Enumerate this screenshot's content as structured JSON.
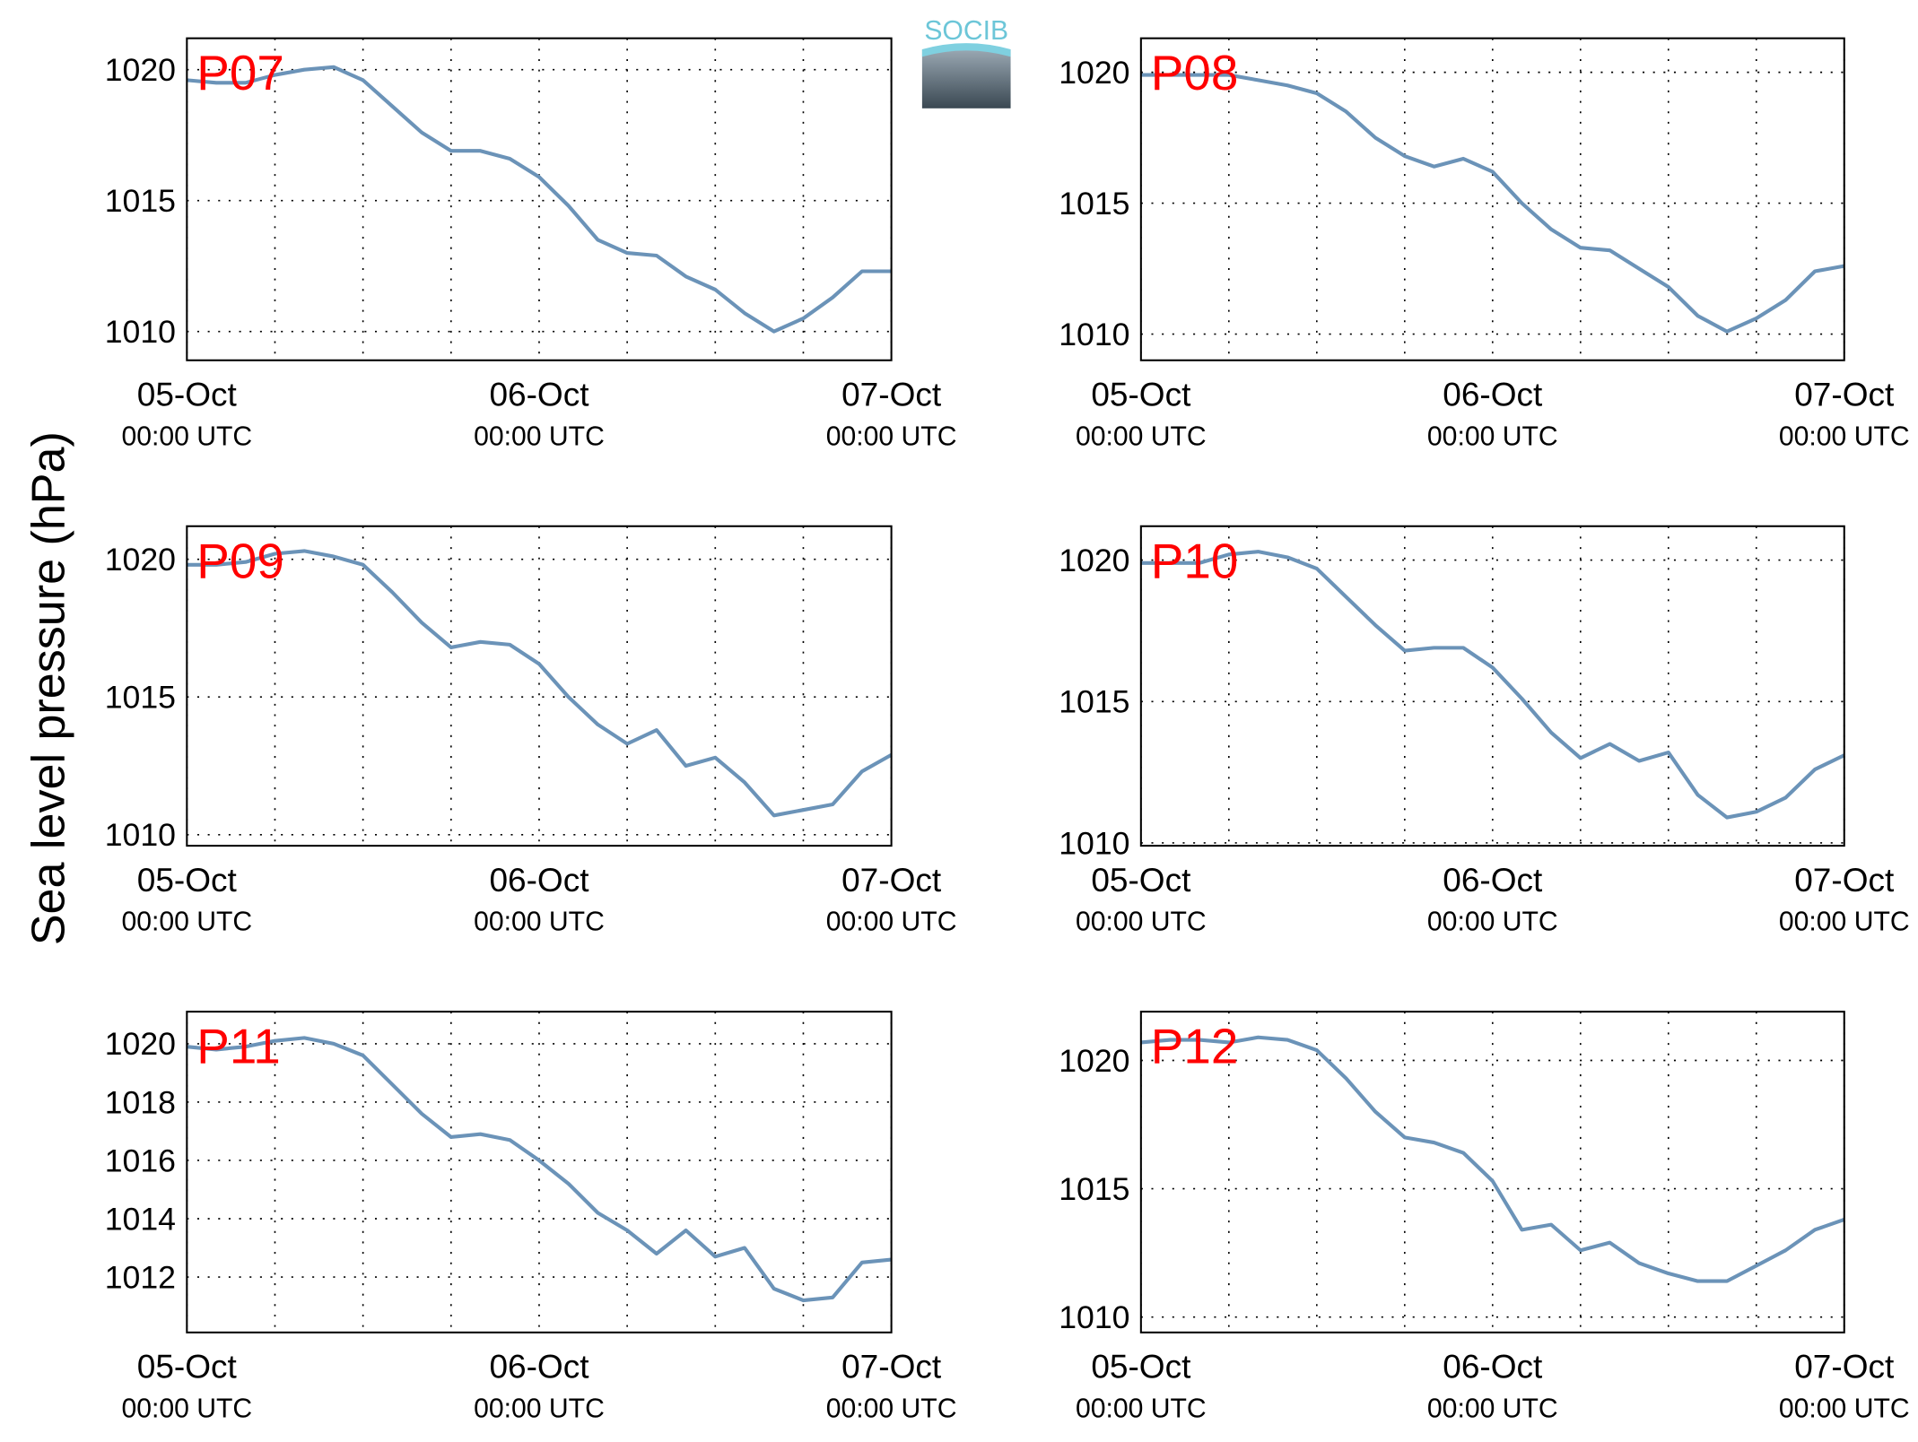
{
  "ylabel": "Sea level pressure (hPa)",
  "logo": "SOCIB",
  "chart_data": [
    {
      "type": "line",
      "title": "P07",
      "grid": true,
      "x": [
        "05-Oct 00:00",
        "05-Oct 02:00",
        "05-Oct 04:00",
        "05-Oct 06:00",
        "05-Oct 08:00",
        "05-Oct 10:00",
        "05-Oct 12:00",
        "05-Oct 14:00",
        "05-Oct 16:00",
        "05-Oct 18:00",
        "05-Oct 20:00",
        "05-Oct 22:00",
        "06-Oct 00:00",
        "06-Oct 02:00",
        "06-Oct 04:00",
        "06-Oct 06:00",
        "06-Oct 08:00",
        "06-Oct 10:00",
        "06-Oct 12:00",
        "06-Oct 14:00",
        "06-Oct 16:00",
        "06-Oct 18:00",
        "06-Oct 20:00",
        "06-Oct 22:00",
        "07-Oct 00:00"
      ],
      "series": [
        {
          "color": "#6b93b8",
          "values": [
            1019.6,
            1019.5,
            1019.5,
            1019.8,
            1020.0,
            1020.1,
            1019.6,
            1018.6,
            1017.6,
            1016.9,
            1016.9,
            1016.6,
            1015.9,
            1014.8,
            1013.5,
            1013.0,
            1012.9,
            1012.1,
            1011.6,
            1010.7,
            1010.0,
            1010.5,
            1011.3,
            1012.3,
            1012.3
          ]
        }
      ],
      "xlim": [
        "05-Oct 00:00",
        "07-Oct 00:00"
      ],
      "xticks": [
        {
          "value": "05-Oct 00:00",
          "label": [
            "05-Oct",
            "00:00 UTC"
          ]
        },
        {
          "value": "06-Oct 00:00",
          "label": [
            "06-Oct",
            "00:00 UTC"
          ]
        },
        {
          "value": "07-Oct 00:00",
          "label": [
            "07-Oct",
            "00:00 UTC"
          ]
        }
      ],
      "xminor": [
        "05-Oct 06:00",
        "05-Oct 12:00",
        "05-Oct 18:00",
        "06-Oct 06:00",
        "06-Oct 12:00",
        "06-Oct 18:00"
      ],
      "ylim": [
        1008.9,
        1021.2
      ],
      "yticks": [
        1010,
        1015,
        1020
      ]
    },
    {
      "type": "line",
      "title": "P08",
      "grid": true,
      "x": [
        "05-Oct 00:00",
        "05-Oct 02:00",
        "05-Oct 04:00",
        "05-Oct 06:00",
        "05-Oct 08:00",
        "05-Oct 10:00",
        "05-Oct 12:00",
        "05-Oct 14:00",
        "05-Oct 16:00",
        "05-Oct 18:00",
        "05-Oct 20:00",
        "05-Oct 22:00",
        "06-Oct 00:00",
        "06-Oct 02:00",
        "06-Oct 04:00",
        "06-Oct 06:00",
        "06-Oct 08:00",
        "06-Oct 10:00",
        "06-Oct 12:00",
        "06-Oct 14:00",
        "06-Oct 16:00",
        "06-Oct 18:00",
        "06-Oct 20:00",
        "06-Oct 22:00",
        "07-Oct 00:00"
      ],
      "series": [
        {
          "color": "#6b93b8",
          "values": [
            1019.9,
            1019.9,
            1019.9,
            1019.9,
            1019.7,
            1019.5,
            1019.2,
            1018.5,
            1017.5,
            1016.8,
            1016.4,
            1016.7,
            1016.2,
            1015.0,
            1014.0,
            1013.3,
            1013.2,
            1012.5,
            1011.8,
            1010.7,
            1010.1,
            1010.6,
            1011.3,
            1012.4,
            1012.6
          ]
        }
      ],
      "xlim": [
        "05-Oct 00:00",
        "07-Oct 00:00"
      ],
      "xticks": [
        {
          "value": "05-Oct 00:00",
          "label": [
            "05-Oct",
            "00:00 UTC"
          ]
        },
        {
          "value": "06-Oct 00:00",
          "label": [
            "06-Oct",
            "00:00 UTC"
          ]
        },
        {
          "value": "07-Oct 00:00",
          "label": [
            "07-Oct",
            "00:00 UTC"
          ]
        }
      ],
      "xminor": [
        "05-Oct 06:00",
        "05-Oct 12:00",
        "05-Oct 18:00",
        "06-Oct 06:00",
        "06-Oct 12:00",
        "06-Oct 18:00"
      ],
      "ylim": [
        1009.0,
        1021.3
      ],
      "yticks": [
        1010,
        1015,
        1020
      ]
    },
    {
      "type": "line",
      "title": "P09",
      "grid": true,
      "x": [
        "05-Oct 00:00",
        "05-Oct 02:00",
        "05-Oct 04:00",
        "05-Oct 06:00",
        "05-Oct 08:00",
        "05-Oct 10:00",
        "05-Oct 12:00",
        "05-Oct 14:00",
        "05-Oct 16:00",
        "05-Oct 18:00",
        "05-Oct 20:00",
        "05-Oct 22:00",
        "06-Oct 00:00",
        "06-Oct 02:00",
        "06-Oct 04:00",
        "06-Oct 06:00",
        "06-Oct 08:00",
        "06-Oct 10:00",
        "06-Oct 12:00",
        "06-Oct 14:00",
        "06-Oct 16:00",
        "06-Oct 18:00",
        "06-Oct 20:00",
        "06-Oct 22:00",
        "07-Oct 00:00"
      ],
      "series": [
        {
          "color": "#6b93b8",
          "values": [
            1019.8,
            1019.8,
            1019.9,
            1020.2,
            1020.3,
            1020.1,
            1019.8,
            1018.8,
            1017.7,
            1016.8,
            1017.0,
            1016.9,
            1016.2,
            1015.0,
            1014.0,
            1013.3,
            1013.8,
            1012.5,
            1012.8,
            1011.9,
            1010.7,
            1010.9,
            1011.1,
            1012.3,
            1012.9
          ]
        }
      ],
      "xlim": [
        "05-Oct 00:00",
        "07-Oct 00:00"
      ],
      "xticks": [
        {
          "value": "05-Oct 00:00",
          "label": [
            "05-Oct",
            "00:00 UTC"
          ]
        },
        {
          "value": "06-Oct 00:00",
          "label": [
            "06-Oct",
            "00:00 UTC"
          ]
        },
        {
          "value": "07-Oct 00:00",
          "label": [
            "07-Oct",
            "00:00 UTC"
          ]
        }
      ],
      "xminor": [
        "05-Oct 06:00",
        "05-Oct 12:00",
        "05-Oct 18:00",
        "06-Oct 06:00",
        "06-Oct 12:00",
        "06-Oct 18:00"
      ],
      "ylim": [
        1009.6,
        1021.2
      ],
      "yticks": [
        1010,
        1015,
        1020
      ]
    },
    {
      "type": "line",
      "title": "P10",
      "grid": true,
      "x": [
        "05-Oct 00:00",
        "05-Oct 02:00",
        "05-Oct 04:00",
        "05-Oct 06:00",
        "05-Oct 08:00",
        "05-Oct 10:00",
        "05-Oct 12:00",
        "05-Oct 14:00",
        "05-Oct 16:00",
        "05-Oct 18:00",
        "05-Oct 20:00",
        "05-Oct 22:00",
        "06-Oct 00:00",
        "06-Oct 02:00",
        "06-Oct 04:00",
        "06-Oct 06:00",
        "06-Oct 08:00",
        "06-Oct 10:00",
        "06-Oct 12:00",
        "06-Oct 14:00",
        "06-Oct 16:00",
        "06-Oct 18:00",
        "06-Oct 20:00",
        "06-Oct 22:00",
        "07-Oct 00:00"
      ],
      "series": [
        {
          "color": "#6b93b8",
          "values": [
            1019.9,
            1019.9,
            1019.9,
            1020.2,
            1020.3,
            1020.1,
            1019.7,
            1018.7,
            1017.7,
            1016.8,
            1016.9,
            1016.9,
            1016.2,
            1015.1,
            1013.9,
            1013.0,
            1013.5,
            1012.9,
            1013.2,
            1011.7,
            1010.9,
            1011.1,
            1011.6,
            1012.6,
            1013.1
          ]
        }
      ],
      "xlim": [
        "05-Oct 00:00",
        "07-Oct 00:00"
      ],
      "xticks": [
        {
          "value": "05-Oct 00:00",
          "label": [
            "05-Oct",
            "00:00 UTC"
          ]
        },
        {
          "value": "06-Oct 00:00",
          "label": [
            "06-Oct",
            "00:00 UTC"
          ]
        },
        {
          "value": "07-Oct 00:00",
          "label": [
            "07-Oct",
            "00:00 UTC"
          ]
        }
      ],
      "xminor": [
        "05-Oct 06:00",
        "05-Oct 12:00",
        "05-Oct 18:00",
        "06-Oct 06:00",
        "06-Oct 12:00",
        "06-Oct 18:00"
      ],
      "ylim": [
        1009.9,
        1021.2
      ],
      "yticks": [
        1010,
        1015,
        1020
      ]
    },
    {
      "type": "line",
      "title": "P11",
      "grid": true,
      "x": [
        "05-Oct 00:00",
        "05-Oct 02:00",
        "05-Oct 04:00",
        "05-Oct 06:00",
        "05-Oct 08:00",
        "05-Oct 10:00",
        "05-Oct 12:00",
        "05-Oct 14:00",
        "05-Oct 16:00",
        "05-Oct 18:00",
        "05-Oct 20:00",
        "05-Oct 22:00",
        "06-Oct 00:00",
        "06-Oct 02:00",
        "06-Oct 04:00",
        "06-Oct 06:00",
        "06-Oct 08:00",
        "06-Oct 10:00",
        "06-Oct 12:00",
        "06-Oct 14:00",
        "06-Oct 16:00",
        "06-Oct 18:00",
        "06-Oct 20:00",
        "06-Oct 22:00",
        "07-Oct 00:00"
      ],
      "series": [
        {
          "color": "#6b93b8",
          "values": [
            1019.9,
            1019.8,
            1019.9,
            1020.1,
            1020.2,
            1020.0,
            1019.6,
            1018.6,
            1017.6,
            1016.8,
            1016.9,
            1016.7,
            1016.0,
            1015.2,
            1014.2,
            1013.6,
            1012.8,
            1013.6,
            1012.7,
            1013.0,
            1011.6,
            1011.2,
            1011.3,
            1012.5,
            1012.6
          ]
        }
      ],
      "xlim": [
        "05-Oct 00:00",
        "07-Oct 00:00"
      ],
      "xticks": [
        {
          "value": "05-Oct 00:00",
          "label": [
            "05-Oct",
            "00:00 UTC"
          ]
        },
        {
          "value": "06-Oct 00:00",
          "label": [
            "06-Oct",
            "00:00 UTC"
          ]
        },
        {
          "value": "07-Oct 00:00",
          "label": [
            "07-Oct",
            "00:00 UTC"
          ]
        }
      ],
      "xminor": [
        "05-Oct 06:00",
        "05-Oct 12:00",
        "05-Oct 18:00",
        "06-Oct 06:00",
        "06-Oct 12:00",
        "06-Oct 18:00"
      ],
      "ylim": [
        1010.1,
        1021.1
      ],
      "yticks": [
        1012,
        1014,
        1016,
        1018,
        1020
      ]
    },
    {
      "type": "line",
      "title": "P12",
      "grid": true,
      "x": [
        "05-Oct 00:00",
        "05-Oct 02:00",
        "05-Oct 04:00",
        "05-Oct 06:00",
        "05-Oct 08:00",
        "05-Oct 10:00",
        "05-Oct 12:00",
        "05-Oct 14:00",
        "05-Oct 16:00",
        "05-Oct 18:00",
        "05-Oct 20:00",
        "05-Oct 22:00",
        "06-Oct 00:00",
        "06-Oct 02:00",
        "06-Oct 04:00",
        "06-Oct 06:00",
        "06-Oct 08:00",
        "06-Oct 10:00",
        "06-Oct 12:00",
        "06-Oct 14:00",
        "06-Oct 16:00",
        "06-Oct 18:00",
        "06-Oct 20:00",
        "06-Oct 22:00",
        "07-Oct 00:00"
      ],
      "series": [
        {
          "color": "#6b93b8",
          "values": [
            1020.7,
            1020.8,
            1020.8,
            1020.7,
            1020.9,
            1020.8,
            1020.4,
            1019.3,
            1018.0,
            1017.0,
            1016.8,
            1016.4,
            1015.3,
            1013.4,
            1013.6,
            1012.6,
            1012.9,
            1012.1,
            1011.7,
            1011.4,
            1011.4,
            1012.0,
            1012.6,
            1013.4,
            1013.8
          ]
        }
      ],
      "xlim": [
        "05-Oct 00:00",
        "07-Oct 00:00"
      ],
      "xticks": [
        {
          "value": "05-Oct 00:00",
          "label": [
            "05-Oct",
            "00:00 UTC"
          ]
        },
        {
          "value": "06-Oct 00:00",
          "label": [
            "06-Oct",
            "00:00 UTC"
          ]
        },
        {
          "value": "07-Oct 00:00",
          "label": [
            "07-Oct",
            "00:00 UTC"
          ]
        }
      ],
      "xminor": [
        "05-Oct 06:00",
        "05-Oct 12:00",
        "05-Oct 18:00",
        "06-Oct 06:00",
        "06-Oct 12:00",
        "06-Oct 18:00"
      ],
      "ylim": [
        1009.4,
        1021.9
      ],
      "yticks": [
        1010,
        1015,
        1020
      ]
    }
  ]
}
